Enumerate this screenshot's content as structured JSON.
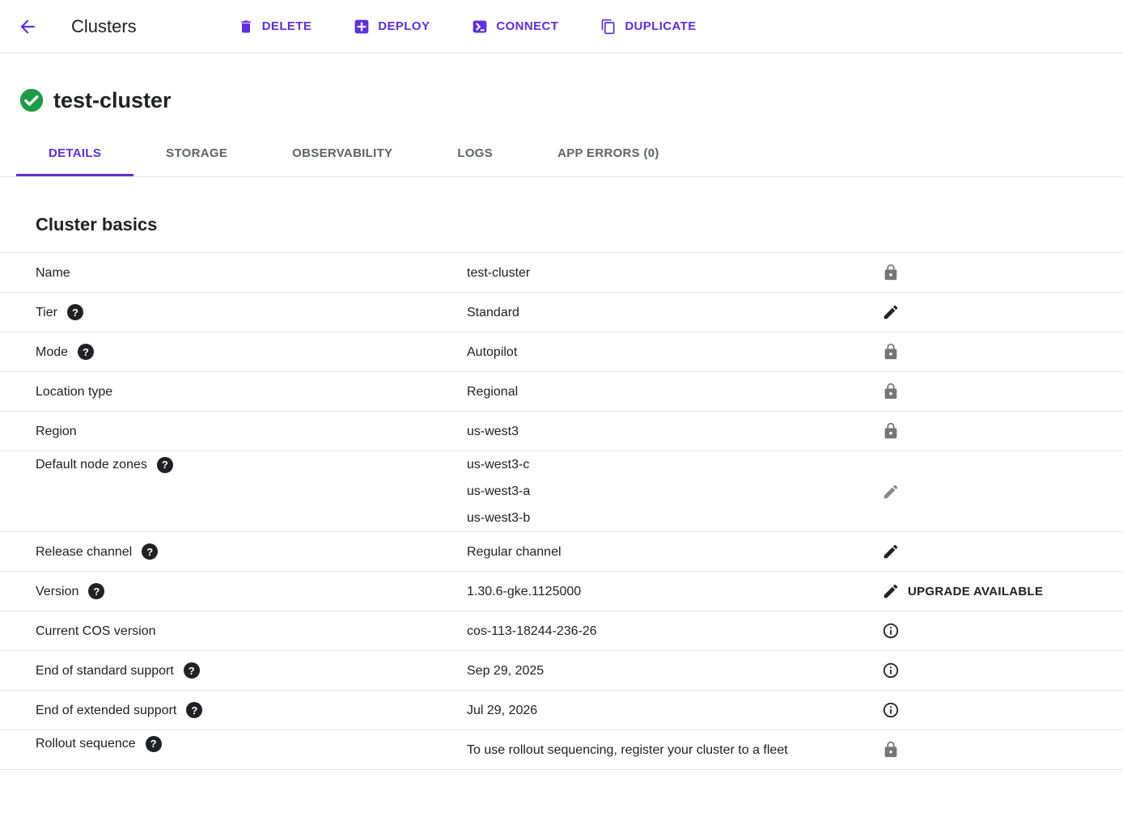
{
  "colors": {
    "accent": "#5C2FE0",
    "status_green": "#1E9C49",
    "divider": "#e4e4e4",
    "muted_gray": "#757575",
    "tab_inactive": "#5f6368",
    "text": "#202124"
  },
  "header": {
    "title": "Clusters",
    "actions": [
      {
        "name": "delete-button",
        "icon": "trash-icon",
        "label": "DELETE"
      },
      {
        "name": "deploy-button",
        "icon": "deploy-icon",
        "label": "DEPLOY"
      },
      {
        "name": "connect-button",
        "icon": "terminal-icon",
        "label": "CONNECT"
      },
      {
        "name": "duplicate-button",
        "icon": "duplicate-icon",
        "label": "DUPLICATE"
      }
    ]
  },
  "cluster": {
    "name": "test-cluster",
    "status": "ok"
  },
  "tabs": [
    {
      "label": "DETAILS",
      "active": true
    },
    {
      "label": "STORAGE",
      "active": false
    },
    {
      "label": "OBSERVABILITY",
      "active": false
    },
    {
      "label": "LOGS",
      "active": false
    },
    {
      "label": "APP ERRORS (0)",
      "active": false
    }
  ],
  "section": {
    "title": "Cluster basics"
  },
  "basics": {
    "rows": [
      {
        "label": "Name",
        "help": false,
        "values": [
          "test-cluster"
        ],
        "icon": "lock"
      },
      {
        "label": "Tier",
        "help": true,
        "values": [
          "Standard"
        ],
        "icon": "edit"
      },
      {
        "label": "Mode",
        "help": true,
        "values": [
          "Autopilot"
        ],
        "icon": "lock"
      },
      {
        "label": "Location type",
        "help": false,
        "values": [
          "Regional"
        ],
        "icon": "lock"
      },
      {
        "label": "Region",
        "help": false,
        "values": [
          "us-west3"
        ],
        "icon": "lock"
      },
      {
        "label": "Default node zones",
        "help": true,
        "values": [
          "us-west3-c",
          "us-west3-a",
          "us-west3-b"
        ],
        "icon": "edit",
        "disabled": true
      },
      {
        "label": "Release channel",
        "help": true,
        "values": [
          "Regular channel"
        ],
        "icon": "edit"
      },
      {
        "label": "Version",
        "help": true,
        "values": [
          "1.30.6-gke.1125000"
        ],
        "icon": "edit",
        "action_label": "UPGRADE AVAILABLE"
      },
      {
        "label": "Current COS version",
        "help": false,
        "values": [
          "cos-113-18244-236-26"
        ],
        "icon": "info"
      },
      {
        "label": "End of standard support",
        "help": true,
        "values": [
          "Sep 29, 2025"
        ],
        "icon": "info"
      },
      {
        "label": "End of extended support",
        "help": true,
        "values": [
          "Jul 29, 2026"
        ],
        "icon": "info"
      },
      {
        "label": "Rollout sequence",
        "help": true,
        "values": [
          "To use rollout sequencing, register your cluster to a fleet"
        ],
        "icon": "lock",
        "multi": true
      }
    ]
  }
}
